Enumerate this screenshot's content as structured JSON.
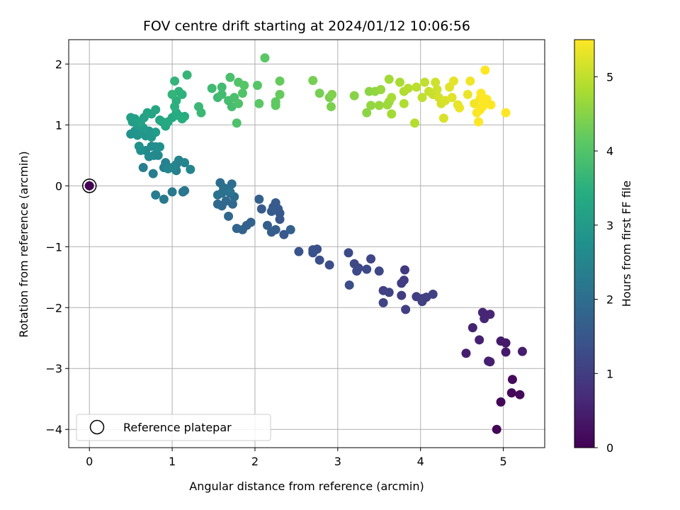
{
  "chart_data": {
    "type": "scatter",
    "title": "FOV centre drift starting at 2024/01/12 10:06:56",
    "xlabel": "Angular distance from reference (arcmin)",
    "ylabel": "Rotation from reference (arcmin)",
    "xlim": [
      -0.25,
      5.5
    ],
    "ylim": [
      -4.3,
      2.4
    ],
    "xticks": [
      0,
      1,
      2,
      3,
      4,
      5
    ],
    "xtick_labels": [
      "0",
      "1",
      "2",
      "3",
      "4",
      "5"
    ],
    "yticks": [
      2,
      1,
      0,
      -1,
      -2,
      -3,
      -4
    ],
    "ytick_labels": [
      "2",
      "1",
      "0",
      "−1",
      "−2",
      "−3",
      "−4"
    ],
    "grid": true,
    "colormap": "viridis",
    "colorbar": {
      "label": "Hours from first FF file",
      "range": [
        0,
        5.5
      ],
      "ticks": [
        0,
        1,
        2,
        3,
        4,
        5
      ],
      "tick_labels": [
        "0",
        "1",
        "2",
        "3",
        "4",
        "5"
      ]
    },
    "legend": {
      "position": "lower-left",
      "entries": [
        {
          "label": "Reference platepar",
          "marker": "open-circle"
        }
      ]
    },
    "reference_point": {
      "x": 0,
      "y": 0,
      "c": 0
    },
    "points": [
      [
        0,
        0,
        0
      ],
      [
        4.92,
        -4.0,
        0.05
      ],
      [
        4.97,
        -3.55,
        0.1
      ],
      [
        5.1,
        -3.4,
        0.1
      ],
      [
        5.2,
        -3.43,
        0.15
      ],
      [
        5.11,
        -3.18,
        0.15
      ],
      [
        4.55,
        -2.75,
        0.45
      ],
      [
        4.97,
        -2.55,
        0.4
      ],
      [
        5.03,
        -2.58,
        0.4
      ],
      [
        5.03,
        -2.73,
        0.4
      ],
      [
        5.23,
        -2.72,
        0.45
      ],
      [
        4.82,
        -2.88,
        0.5
      ],
      [
        4.84,
        -2.89,
        0.5
      ],
      [
        4.71,
        -2.53,
        0.5
      ],
      [
        4.63,
        -2.33,
        0.55
      ],
      [
        4.75,
        -2.08,
        0.6
      ],
      [
        4.8,
        -2.12,
        0.6
      ],
      [
        4.84,
        -2.11,
        0.6
      ],
      [
        4.77,
        -2.18,
        0.6
      ],
      [
        3.81,
        -1.38,
        0.95
      ],
      [
        3.77,
        -1.6,
        1.0
      ],
      [
        3.8,
        -1.55,
        1.0
      ],
      [
        3.77,
        -1.8,
        1.0
      ],
      [
        3.82,
        -2.03,
        1.05
      ],
      [
        3.95,
        -1.82,
        1.0
      ],
      [
        4.03,
        -1.85,
        1.0
      ],
      [
        4.02,
        -1.9,
        1.05
      ],
      [
        4.07,
        -1.83,
        1.05
      ],
      [
        4.15,
        -1.78,
        1.1
      ],
      [
        3.55,
        -1.72,
        1.1
      ],
      [
        3.62,
        -1.75,
        1.1
      ],
      [
        3.55,
        -1.92,
        1.15
      ],
      [
        3.4,
        -1.2,
        1.15
      ],
      [
        3.5,
        -1.4,
        1.2
      ],
      [
        3.2,
        -1.28,
        1.2
      ],
      [
        3.25,
        -1.35,
        1.2
      ],
      [
        3.23,
        -1.4,
        1.25
      ],
      [
        3.35,
        -1.37,
        1.25
      ],
      [
        3.13,
        -1.1,
        1.25
      ],
      [
        3.14,
        -1.63,
        1.3
      ],
      [
        2.9,
        -1.3,
        1.3
      ],
      [
        2.78,
        -1.22,
        1.35
      ],
      [
        2.75,
        -1.04,
        1.35
      ],
      [
        2.7,
        -1.1,
        1.4
      ],
      [
        2.7,
        -1.05,
        1.4
      ],
      [
        2.53,
        -1.08,
        1.45
      ],
      [
        2.3,
        -0.45,
        1.5
      ],
      [
        2.3,
        -0.55,
        1.5
      ],
      [
        2.35,
        -0.8,
        1.55
      ],
      [
        2.28,
        -0.38,
        1.55
      ],
      [
        2.22,
        -0.35,
        1.55
      ],
      [
        2.25,
        -0.28,
        1.6
      ],
      [
        2.2,
        -0.42,
        1.6
      ],
      [
        2.08,
        -0.38,
        1.6
      ],
      [
        2.15,
        -0.65,
        1.65
      ],
      [
        2.25,
        -0.72,
        1.65
      ],
      [
        2.2,
        -0.76,
        1.65
      ],
      [
        2.43,
        -0.72,
        1.7
      ],
      [
        2.05,
        -0.22,
        1.7
      ],
      [
        1.95,
        -0.6,
        1.75
      ],
      [
        1.9,
        -0.65,
        1.75
      ],
      [
        1.85,
        -0.72,
        1.75
      ],
      [
        1.78,
        -0.7,
        1.8
      ],
      [
        1.68,
        -0.5,
        1.85
      ],
      [
        1.55,
        -0.3,
        1.85
      ],
      [
        1.6,
        -0.33,
        1.9
      ],
      [
        1.65,
        -0.25,
        1.9
      ],
      [
        1.73,
        -0.3,
        1.9
      ],
      [
        1.75,
        -0.18,
        1.95
      ],
      [
        1.7,
        -0.12,
        1.95
      ],
      [
        1.65,
        -0.05,
        2.0
      ],
      [
        1.72,
        0.03,
        2.0
      ],
      [
        1.58,
        0.05,
        2.0
      ],
      [
        1.62,
        -0.03,
        2.05
      ],
      [
        1.6,
        -0.12,
        2.05
      ],
      [
        1.55,
        -0.15,
        2.1
      ],
      [
        1.7,
        -0.1,
        2.1
      ],
      [
        1.13,
        -0.1,
        2.2
      ],
      [
        1.15,
        -0.08,
        2.2
      ],
      [
        1.0,
        -0.1,
        2.25
      ],
      [
        0.9,
        -0.22,
        2.25
      ],
      [
        0.8,
        -0.15,
        2.3
      ],
      [
        0.77,
        0.2,
        2.3
      ],
      [
        0.65,
        0.3,
        2.35
      ],
      [
        0.9,
        0.3,
        2.35
      ],
      [
        0.92,
        0.38,
        2.4
      ],
      [
        1.05,
        0.25,
        2.4
      ],
      [
        1.05,
        0.35,
        2.45
      ],
      [
        1.08,
        0.42,
        2.45
      ],
      [
        1.15,
        0.38,
        2.5
      ],
      [
        1.22,
        0.27,
        2.5
      ],
      [
        1.0,
        0.3,
        2.55
      ],
      [
        0.95,
        0.28,
        2.55
      ],
      [
        0.83,
        0.5,
        2.6
      ],
      [
        0.78,
        0.5,
        2.6
      ],
      [
        0.72,
        0.48,
        2.65
      ],
      [
        0.68,
        0.58,
        2.65
      ],
      [
        0.75,
        0.65,
        2.7
      ],
      [
        0.8,
        0.64,
        2.7
      ],
      [
        0.85,
        0.64,
        2.75
      ],
      [
        0.62,
        0.58,
        2.75
      ],
      [
        0.6,
        0.65,
        2.8
      ],
      [
        0.5,
        0.85,
        2.8
      ],
      [
        0.55,
        0.9,
        2.85
      ],
      [
        0.58,
        0.83,
        2.85
      ],
      [
        0.63,
        0.88,
        2.9
      ],
      [
        0.68,
        0.82,
        2.9
      ],
      [
        0.72,
        0.9,
        2.95
      ],
      [
        0.75,
        0.8,
        2.95
      ],
      [
        0.8,
        0.88,
        3.0
      ],
      [
        0.65,
        0.95,
        3.0
      ],
      [
        0.58,
        1.0,
        3.05
      ],
      [
        0.52,
        1.05,
        3.05
      ],
      [
        0.5,
        1.12,
        3.1
      ],
      [
        0.55,
        1.1,
        3.1
      ],
      [
        0.62,
        1.05,
        3.15
      ],
      [
        0.66,
        1.12,
        3.15
      ],
      [
        0.7,
        1.2,
        3.2
      ],
      [
        0.75,
        1.18,
        3.2
      ],
      [
        0.8,
        1.25,
        3.25
      ],
      [
        0.85,
        1.08,
        3.25
      ],
      [
        0.88,
        1.05,
        3.3
      ],
      [
        0.92,
        0.98,
        3.3
      ],
      [
        0.95,
        1.05,
        3.35
      ],
      [
        1.0,
        1.12,
        3.35
      ],
      [
        1.05,
        1.2,
        3.4
      ],
      [
        1.08,
        1.15,
        3.4
      ],
      [
        1.12,
        1.1,
        3.45
      ],
      [
        1.15,
        1.14,
        3.45
      ],
      [
        1.03,
        1.3,
        3.5
      ],
      [
        1.05,
        1.4,
        3.5
      ],
      [
        1.08,
        1.55,
        3.55
      ],
      [
        1.12,
        1.5,
        3.55
      ],
      [
        1.0,
        1.5,
        3.6
      ],
      [
        1.03,
        1.72,
        3.6
      ],
      [
        1.18,
        1.82,
        3.65
      ],
      [
        1.32,
        1.3,
        3.7
      ],
      [
        1.35,
        1.2,
        3.7
      ],
      [
        1.48,
        1.6,
        3.75
      ],
      [
        1.55,
        1.45,
        3.75
      ],
      [
        1.6,
        1.5,
        3.8
      ],
      [
        1.6,
        1.62,
        3.8
      ],
      [
        1.68,
        1.4,
        3.85
      ],
      [
        1.72,
        1.3,
        3.85
      ],
      [
        1.75,
        1.45,
        3.9
      ],
      [
        1.7,
        1.78,
        3.9
      ],
      [
        1.8,
        1.35,
        3.95
      ],
      [
        1.78,
        1.03,
        3.95
      ],
      [
        1.8,
        1.7,
        4.0
      ],
      [
        1.85,
        1.52,
        4.0
      ],
      [
        1.87,
        1.65,
        4.05
      ],
      [
        2.03,
        1.65,
        4.05
      ],
      [
        2.05,
        1.35,
        4.1
      ],
      [
        2.12,
        2.1,
        4.1
      ],
      [
        2.25,
        1.38,
        4.15
      ],
      [
        2.25,
        1.32,
        4.15
      ],
      [
        2.3,
        1.5,
        4.2
      ],
      [
        2.3,
        1.72,
        4.2
      ],
      [
        2.7,
        1.73,
        4.35
      ],
      [
        2.78,
        1.52,
        4.35
      ],
      [
        2.9,
        1.45,
        4.4
      ],
      [
        2.92,
        1.3,
        4.4
      ],
      [
        2.93,
        1.5,
        4.45
      ],
      [
        3.2,
        1.48,
        4.5
      ],
      [
        3.35,
        1.2,
        4.55
      ],
      [
        3.38,
        1.55,
        4.55
      ],
      [
        3.4,
        1.32,
        4.6
      ],
      [
        3.45,
        1.55,
        4.6
      ],
      [
        3.5,
        1.32,
        4.65
      ],
      [
        3.52,
        1.58,
        4.65
      ],
      [
        3.6,
        1.33,
        4.7
      ],
      [
        3.62,
        1.38,
        4.7
      ],
      [
        3.65,
        1.18,
        4.75
      ],
      [
        3.62,
        1.75,
        4.75
      ],
      [
        3.65,
        1.45,
        4.8
      ],
      [
        3.75,
        1.7,
        4.8
      ],
      [
        3.8,
        1.55,
        4.85
      ],
      [
        3.8,
        1.35,
        4.85
      ],
      [
        3.85,
        1.6,
        4.9
      ],
      [
        3.93,
        1.03,
        4.9
      ],
      [
        3.95,
        1.62,
        4.95
      ],
      [
        4.02,
        1.45,
        5.0
      ],
      [
        4.05,
        1.7,
        5.0
      ],
      [
        4.1,
        1.55,
        5.05
      ],
      [
        4.15,
        1.5,
        5.05
      ],
      [
        4.18,
        1.7,
        5.1
      ],
      [
        4.2,
        1.58,
        5.1
      ],
      [
        4.22,
        1.45,
        5.15
      ],
      [
        4.25,
        1.35,
        5.15
      ],
      [
        4.3,
        1.4,
        5.2
      ],
      [
        4.28,
        1.11,
        5.2
      ],
      [
        4.35,
        1.62,
        5.25
      ],
      [
        4.38,
        1.45,
        5.25
      ],
      [
        4.4,
        1.72,
        5.3
      ],
      [
        4.45,
        1.33,
        5.3
      ],
      [
        4.47,
        1.28,
        5.35
      ],
      [
        4.57,
        1.5,
        5.35
      ],
      [
        4.6,
        1.72,
        5.4
      ],
      [
        4.65,
        1.35,
        5.4
      ],
      [
        4.68,
        1.2,
        5.45
      ],
      [
        4.72,
        1.43,
        5.45
      ],
      [
        4.73,
        1.52,
        5.5
      ],
      [
        4.75,
        1.45,
        5.5
      ],
      [
        4.78,
        1.9,
        5.5
      ],
      [
        4.8,
        1.42,
        5.5
      ],
      [
        4.85,
        1.33,
        5.5
      ],
      [
        4.7,
        1.05,
        5.5
      ],
      [
        4.72,
        1.25,
        5.5
      ],
      [
        4.75,
        1.3,
        5.5
      ],
      [
        5.03,
        1.2,
        5.5
      ]
    ]
  }
}
